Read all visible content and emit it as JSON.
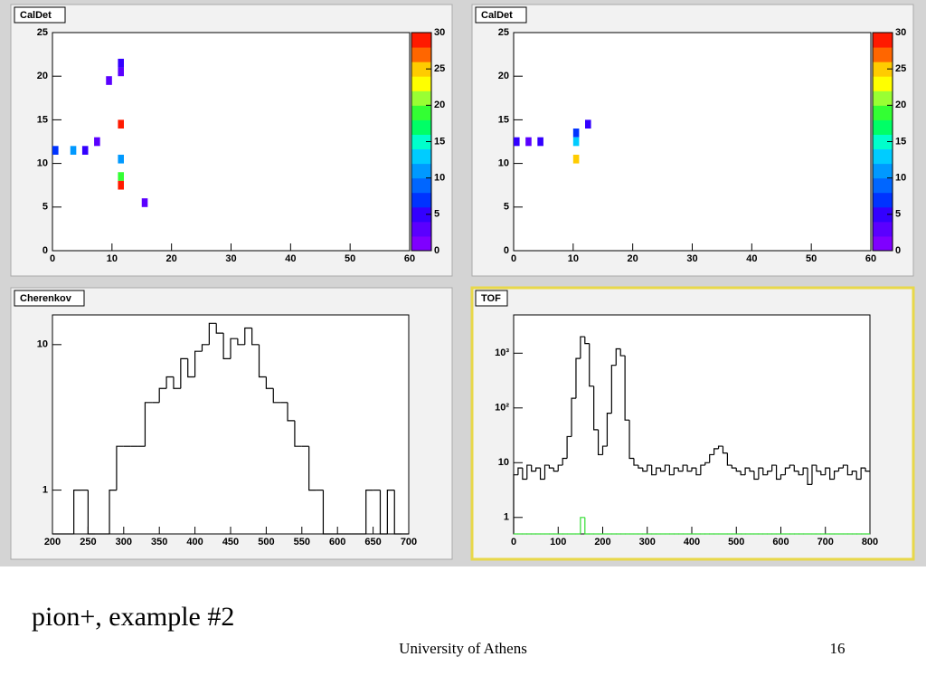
{
  "slide": {
    "caption": "pion+, example #2",
    "footer": "University of Athens",
    "page": "16"
  },
  "chart_data": [
    {
      "type": "heatmap",
      "title": "CalDet",
      "x": [
        11,
        11,
        9,
        11,
        7,
        0,
        3,
        5,
        11,
        11,
        11,
        15
      ],
      "y": [
        21,
        20,
        19,
        14,
        12,
        11,
        11,
        11,
        10,
        8,
        7,
        5
      ],
      "values": [
        5,
        2,
        2,
        28,
        3,
        6,
        11,
        4,
        11,
        18,
        28,
        3
      ],
      "xlim": [
        0,
        60
      ],
      "xticks": [
        0,
        10,
        20,
        30,
        40,
        50,
        60
      ],
      "ylim": [
        0,
        25
      ],
      "yticks": [
        0,
        5,
        10,
        15,
        20,
        25
      ],
      "zlim": [
        0,
        30
      ],
      "zticks": [
        0,
        5,
        10,
        15,
        20,
        25,
        30
      ],
      "palette": [
        "#7f00ff",
        "#5a00ff",
        "#3300ff",
        "#0033ff",
        "#0066ff",
        "#0099ff",
        "#00ccff",
        "#00ffcc",
        "#00ff66",
        "#33ff33",
        "#99ff33",
        "#ffff00",
        "#ffcc00",
        "#ff6600",
        "#ff1a00"
      ]
    },
    {
      "type": "heatmap",
      "title": "CalDet",
      "x": [
        0,
        2,
        4,
        10,
        10,
        10,
        12
      ],
      "y": [
        12,
        12,
        12,
        13,
        12,
        10,
        14
      ],
      "values": [
        5,
        2,
        5,
        6,
        13,
        24,
        4
      ],
      "xlim": [
        0,
        60
      ],
      "xticks": [
        0,
        10,
        20,
        30,
        40,
        50,
        60
      ],
      "ylim": [
        0,
        25
      ],
      "yticks": [
        0,
        5,
        10,
        15,
        20,
        25
      ],
      "zlim": [
        0,
        30
      ],
      "zticks": [
        0,
        5,
        10,
        15,
        20,
        25,
        30
      ],
      "palette": [
        "#7f00ff",
        "#5a00ff",
        "#3300ff",
        "#0033ff",
        "#0066ff",
        "#0099ff",
        "#00ccff",
        "#00ffcc",
        "#00ff66",
        "#33ff33",
        "#99ff33",
        "#ffff00",
        "#ffcc00",
        "#ff6600",
        "#ff1a00"
      ]
    },
    {
      "type": "histogram",
      "title": "Cherenkov",
      "log_y": true,
      "bins": [
        200,
        210,
        220,
        230,
        240,
        250,
        260,
        270,
        280,
        290,
        300,
        310,
        320,
        330,
        340,
        350,
        360,
        370,
        380,
        390,
        400,
        410,
        420,
        430,
        440,
        450,
        460,
        470,
        480,
        490,
        500,
        510,
        520,
        530,
        540,
        550,
        560,
        570,
        580,
        590,
        600,
        610,
        620,
        630,
        640,
        650,
        660,
        670,
        680,
        690,
        700
      ],
      "series": [
        {
          "color": "#000000",
          "values": [
            0,
            0,
            0,
            1,
            1,
            0,
            0,
            0,
            1,
            2,
            2,
            2,
            2,
            4,
            4,
            5,
            6,
            5,
            8,
            6,
            9,
            10,
            14,
            12,
            8,
            11,
            10,
            13,
            10,
            6,
            5,
            4,
            4,
            3,
            2,
            2,
            1,
            1,
            0,
            0,
            0,
            0,
            0,
            0,
            1,
            1,
            0,
            1,
            0,
            0
          ]
        }
      ],
      "xlim": [
        200,
        700
      ],
      "xticks": [
        200,
        250,
        300,
        350,
        400,
        450,
        500,
        550,
        600,
        650,
        700
      ],
      "ylim": [
        0.5,
        16
      ],
      "yticks": [
        1,
        10
      ]
    },
    {
      "type": "histogram",
      "title": "TOF",
      "log_y": true,
      "bins": [
        0,
        10,
        20,
        30,
        40,
        50,
        60,
        70,
        80,
        90,
        100,
        110,
        120,
        130,
        140,
        150,
        160,
        170,
        180,
        190,
        200,
        210,
        220,
        230,
        240,
        250,
        260,
        270,
        280,
        290,
        300,
        310,
        320,
        330,
        340,
        350,
        360,
        370,
        380,
        390,
        400,
        410,
        420,
        430,
        440,
        450,
        460,
        470,
        480,
        490,
        500,
        510,
        520,
        530,
        540,
        550,
        560,
        570,
        580,
        590,
        600,
        610,
        620,
        630,
        640,
        650,
        660,
        670,
        680,
        690,
        700,
        710,
        720,
        730,
        740,
        750,
        760,
        770,
        780,
        790,
        800
      ],
      "series": [
        {
          "color": "#000000",
          "values": [
            6,
            8,
            5,
            9,
            7,
            8,
            5,
            9,
            8,
            7,
            9,
            12,
            30,
            150,
            800,
            2000,
            1500,
            250,
            40,
            14,
            20,
            80,
            600,
            1200,
            900,
            60,
            12,
            9,
            8,
            7,
            9,
            6,
            8,
            7,
            9,
            6,
            8,
            7,
            9,
            7,
            8,
            6,
            9,
            10,
            14,
            18,
            20,
            15,
            9,
            8,
            7,
            6,
            8,
            7,
            5,
            8,
            6,
            7,
            9,
            5,
            6,
            8,
            9,
            7,
            6,
            8,
            4,
            9,
            7,
            6,
            8,
            5,
            7,
            8,
            9,
            6,
            7,
            5,
            8,
            7
          ]
        },
        {
          "color": "#33dd33",
          "values": [
            0,
            0,
            0,
            0,
            0,
            0,
            0,
            0,
            0,
            0,
            0,
            0,
            0,
            0,
            0,
            1,
            0,
            0,
            0,
            0,
            0,
            0,
            0,
            0,
            0,
            0,
            0,
            0,
            0,
            0,
            0,
            0,
            0,
            0,
            0,
            0,
            0,
            0,
            0,
            0,
            0,
            0,
            0,
            0,
            0,
            0,
            0,
            0,
            0,
            0,
            0,
            0,
            0,
            0,
            0,
            0,
            0,
            0,
            0,
            0,
            0,
            0,
            0,
            0,
            0,
            0,
            0,
            0,
            0,
            0,
            0,
            0,
            0,
            0,
            0,
            0,
            0,
            0,
            0,
            0
          ]
        }
      ],
      "xlim": [
        0,
        800
      ],
      "xticks": [
        0,
        100,
        200,
        300,
        400,
        500,
        600,
        700,
        800
      ],
      "ylim": [
        0.5,
        5000
      ],
      "yticks": [
        1,
        10,
        {
          "value": 100,
          "label": "10²"
        },
        {
          "value": 1000,
          "label": "10³"
        }
      ]
    }
  ]
}
